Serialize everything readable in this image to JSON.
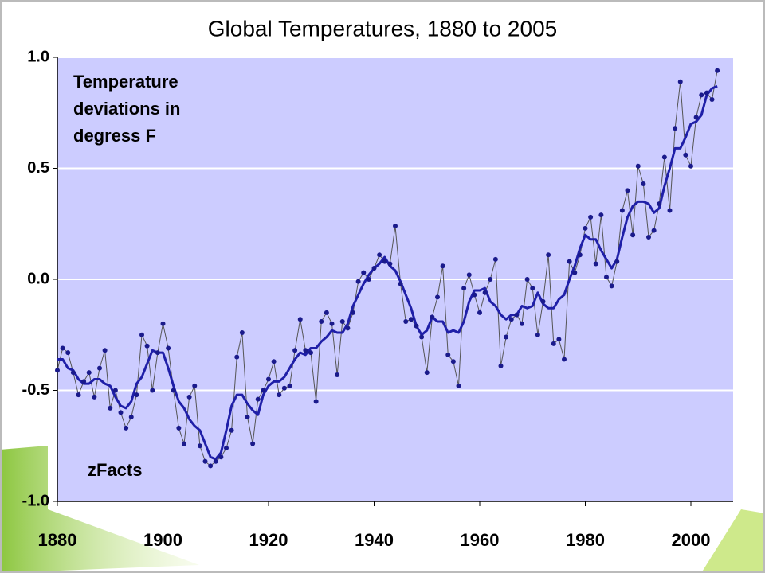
{
  "chart_data": {
    "type": "line",
    "title": "Global Temperatures, 1880 to 2005",
    "annotation_lines": [
      "Temperature",
      "deviations in",
      "degress F"
    ],
    "source": "zFacts",
    "x": [
      1880,
      1881,
      1882,
      1883,
      1884,
      1885,
      1886,
      1887,
      1888,
      1889,
      1890,
      1891,
      1892,
      1893,
      1894,
      1895,
      1896,
      1897,
      1898,
      1899,
      1900,
      1901,
      1902,
      1903,
      1904,
      1905,
      1906,
      1907,
      1908,
      1909,
      1910,
      1911,
      1912,
      1913,
      1914,
      1915,
      1916,
      1917,
      1918,
      1919,
      1920,
      1921,
      1922,
      1923,
      1924,
      1925,
      1926,
      1927,
      1928,
      1929,
      1930,
      1931,
      1932,
      1933,
      1934,
      1935,
      1936,
      1937,
      1938,
      1939,
      1940,
      1941,
      1942,
      1943,
      1944,
      1945,
      1946,
      1947,
      1948,
      1949,
      1950,
      1951,
      1952,
      1953,
      1954,
      1955,
      1956,
      1957,
      1958,
      1959,
      1960,
      1961,
      1962,
      1963,
      1964,
      1965,
      1966,
      1967,
      1968,
      1969,
      1970,
      1971,
      1972,
      1973,
      1974,
      1975,
      1976,
      1977,
      1978,
      1979,
      1980,
      1981,
      1982,
      1983,
      1984,
      1985,
      1986,
      1987,
      1988,
      1989,
      1990,
      1991,
      1992,
      1993,
      1994,
      1995,
      1996,
      1997,
      1998,
      1999,
      2000,
      2001,
      2002,
      2003,
      2004,
      2005
    ],
    "series": [
      {
        "color": "#555555",
        "marker_color": "#1a1a8c",
        "values": [
          -0.41,
          -0.31,
          -0.33,
          -0.42,
          -0.52,
          -0.46,
          -0.42,
          -0.53,
          -0.4,
          -0.32,
          -0.58,
          -0.5,
          -0.6,
          -0.67,
          -0.62,
          -0.52,
          -0.25,
          -0.3,
          -0.5,
          -0.33,
          -0.2,
          -0.31,
          -0.5,
          -0.67,
          -0.74,
          -0.53,
          -0.48,
          -0.75,
          -0.82,
          -0.84,
          -0.82,
          -0.8,
          -0.76,
          -0.68,
          -0.35,
          -0.24,
          -0.62,
          -0.74,
          -0.54,
          -0.5,
          -0.45,
          -0.37,
          -0.52,
          -0.49,
          -0.48,
          -0.32,
          -0.18,
          -0.32,
          -0.33,
          -0.55,
          -0.19,
          -0.15,
          -0.2,
          -0.43,
          -0.19,
          -0.22,
          -0.15,
          -0.01,
          0.03,
          0.0,
          0.05,
          0.11,
          0.08,
          0.07,
          0.24,
          -0.02,
          -0.19,
          -0.18,
          -0.21,
          -0.26,
          -0.42,
          -0.17,
          -0.08,
          0.06,
          -0.34,
          -0.37,
          -0.48,
          -0.04,
          0.02,
          -0.07,
          -0.15,
          -0.06,
          0.0,
          0.09,
          -0.39,
          -0.26,
          -0.18,
          -0.16,
          -0.2,
          0.0,
          -0.04,
          -0.25,
          -0.1,
          0.11,
          -0.29,
          -0.27,
          -0.36,
          0.08,
          0.03,
          0.11,
          0.23,
          0.28,
          0.07,
          0.29,
          0.01,
          -0.03,
          0.08,
          0.31,
          0.4,
          0.2,
          0.51,
          0.43,
          0.19,
          0.22,
          0.34,
          0.55,
          0.31,
          0.68,
          0.89,
          0.56,
          0.51,
          0.73,
          0.83,
          0.84,
          0.81,
          0.94
        ]
      },
      {
        "color": "#1f1fa8",
        "values": [
          -0.36,
          -0.36,
          -0.4,
          -0.41,
          -0.45,
          -0.47,
          -0.47,
          -0.45,
          -0.45,
          -0.47,
          -0.48,
          -0.53,
          -0.57,
          -0.58,
          -0.55,
          -0.47,
          -0.44,
          -0.38,
          -0.32,
          -0.33,
          -0.33,
          -0.4,
          -0.48,
          -0.55,
          -0.58,
          -0.63,
          -0.66,
          -0.68,
          -0.74,
          -0.8,
          -0.81,
          -0.78,
          -0.68,
          -0.57,
          -0.52,
          -0.52,
          -0.56,
          -0.59,
          -0.61,
          -0.52,
          -0.48,
          -0.46,
          -0.46,
          -0.44,
          -0.4,
          -0.36,
          -0.33,
          -0.34,
          -0.31,
          -0.31,
          -0.28,
          -0.26,
          -0.23,
          -0.24,
          -0.24,
          -0.2,
          -0.12,
          -0.07,
          -0.02,
          0.02,
          0.05,
          0.07,
          0.1,
          0.06,
          0.04,
          -0.01,
          -0.07,
          -0.13,
          -0.21,
          -0.25,
          -0.23,
          -0.17,
          -0.19,
          -0.19,
          -0.24,
          -0.23,
          -0.24,
          -0.19,
          -0.1,
          -0.05,
          -0.05,
          -0.04,
          -0.1,
          -0.12,
          -0.16,
          -0.18,
          -0.16,
          -0.16,
          -0.12,
          -0.13,
          -0.12,
          -0.06,
          -0.11,
          -0.13,
          -0.13,
          -0.09,
          -0.07,
          0.0,
          0.06,
          0.14,
          0.2,
          0.18,
          0.18,
          0.13,
          0.09,
          0.05,
          0.09,
          0.19,
          0.28,
          0.33,
          0.35,
          0.35,
          0.34,
          0.3,
          0.32,
          0.42,
          0.5,
          0.59,
          0.59,
          0.64,
          0.7,
          0.71,
          0.74,
          0.83,
          0.86,
          0.87
        ]
      }
    ],
    "xlim": [
      1880,
      2008
    ],
    "xticks": [
      1880,
      1900,
      1920,
      1940,
      1960,
      1980,
      2000
    ],
    "ylim": [
      -1,
      1
    ],
    "yticks": [
      {
        "value": -1,
        "label": "-1.0"
      },
      -0.5,
      {
        "value": 0,
        "label": "0.0"
      },
      0.5,
      {
        "value": 1,
        "label": "1.0"
      }
    ],
    "grid": true,
    "plot_background": "#ccccff"
  }
}
